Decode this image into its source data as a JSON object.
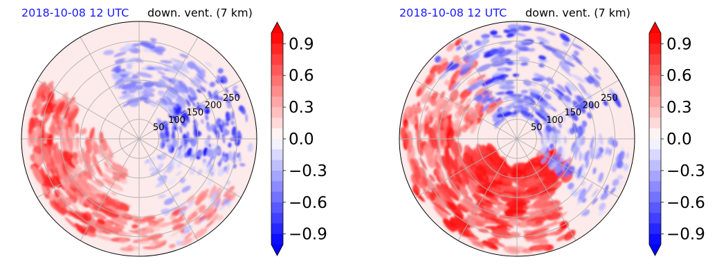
{
  "chart_data": [
    {
      "type": "heatmap",
      "projection": "polar",
      "time_label": "2018-10-08 12 UTC",
      "variable_label": "down. vent. (7 km)",
      "radial_ticks": [
        50,
        100,
        150,
        200,
        250
      ],
      "radial_max": 300,
      "colorbar": {
        "ticks": [
          "0.9",
          "0.6",
          "0.3",
          "0.0",
          "−0.3",
          "−0.6",
          "−0.9"
        ],
        "tick_values": [
          0.9,
          0.6,
          0.3,
          0.0,
          -0.3,
          -0.6,
          -0.9
        ],
        "range": [
          -1.0,
          1.0
        ],
        "extend": "both",
        "colormap": "bwr"
      },
      "colors": {
        "positive": "#ff0000",
        "negative": "#0000ff",
        "zero": "#ffffff",
        "grid": "#b0b0b0"
      }
    },
    {
      "type": "heatmap",
      "projection": "polar",
      "time_label": "2018-10-08 12 UTC",
      "variable_label": "down. vent. (7 km)",
      "radial_ticks": [
        50,
        100,
        150,
        200,
        250
      ],
      "radial_max": 300,
      "colorbar": {
        "ticks": [
          "0.9",
          "0.6",
          "0.3",
          "0.0",
          "−0.3",
          "−0.6",
          "−0.9"
        ],
        "tick_values": [
          0.9,
          0.6,
          0.3,
          0.0,
          -0.3,
          -0.6,
          -0.9
        ],
        "range": [
          -1.0,
          1.0
        ],
        "extend": "both",
        "colormap": "bwr"
      },
      "colors": {
        "positive": "#ff0000",
        "negative": "#0000ff",
        "zero": "#ffffff",
        "grid": "#b0b0b0"
      }
    }
  ]
}
